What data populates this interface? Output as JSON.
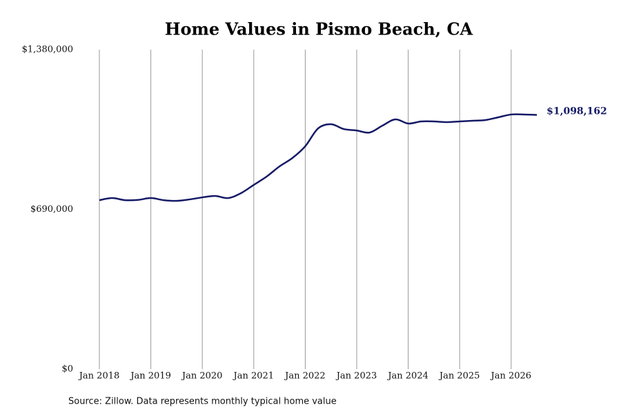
{
  "chart_data": {
    "type": "line",
    "title": "Home Values in Pismo Beach, CA",
    "source": "Source: Zillow. Data represents monthly typical home value",
    "x": [
      "2018-01",
      "2018-04",
      "2018-07",
      "2018-10",
      "2019-01",
      "2019-04",
      "2019-07",
      "2019-10",
      "2020-01",
      "2020-04",
      "2020-07",
      "2020-10",
      "2021-01",
      "2021-04",
      "2021-07",
      "2021-10",
      "2022-01",
      "2022-04",
      "2022-07",
      "2022-10",
      "2023-01",
      "2023-04",
      "2023-07",
      "2023-10",
      "2024-01",
      "2024-04",
      "2024-07",
      "2024-10",
      "2025-01",
      "2025-04",
      "2025-07",
      "2025-10",
      "2026-01",
      "2026-04",
      "2026-07"
    ],
    "series": [
      {
        "name": "Pismo Beach",
        "color": "#151a66",
        "values": [
          730000,
          739000,
          730000,
          731000,
          739000,
          730000,
          727000,
          733000,
          742000,
          748000,
          739000,
          760000,
          796000,
          832000,
          876000,
          912000,
          963000,
          1040000,
          1058000,
          1037000,
          1031000,
          1022000,
          1052000,
          1079000,
          1061000,
          1070000,
          1070000,
          1067000,
          1070000,
          1073000,
          1076000,
          1088000,
          1100000,
          1100000,
          1098162
        ],
        "value_labels": [
          null,
          null,
          null,
          null,
          null,
          null,
          null,
          null,
          null,
          null,
          null,
          null,
          null,
          null,
          null,
          null,
          null,
          null,
          null,
          null,
          null,
          null,
          null,
          null,
          null,
          null,
          null,
          null,
          null,
          null,
          null,
          null,
          null,
          null,
          "$1,098,162"
        ]
      }
    ],
    "ylim": [
      0,
      1380000
    ],
    "yticks": [
      {
        "value": 0,
        "label": "$0"
      },
      {
        "value": 690000,
        "label": "$690,000"
      },
      {
        "value": 1380000,
        "label": "$1,380,000"
      }
    ],
    "xticks": [
      {
        "value": "2018-01",
        "label": "Jan 2018"
      },
      {
        "value": "2019-01",
        "label": "Jan 2019"
      },
      {
        "value": "2020-01",
        "label": "Jan 2020"
      },
      {
        "value": "2021-01",
        "label": "Jan 2021"
      },
      {
        "value": "2022-01",
        "label": "Jan 2022"
      },
      {
        "value": "2023-01",
        "label": "Jan 2023"
      },
      {
        "value": "2024-01",
        "label": "Jan 2024"
      },
      {
        "value": "2025-01",
        "label": "Jan 2025"
      },
      {
        "value": "2026-01",
        "label": "Jan 2026"
      }
    ],
    "grid": "x"
  }
}
